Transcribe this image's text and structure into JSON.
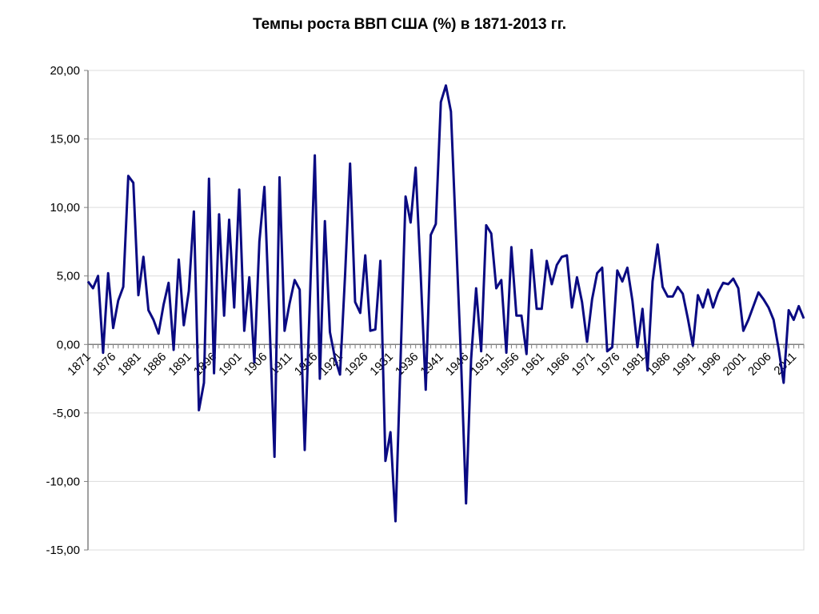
{
  "chart_data": {
    "type": "line",
    "title": "Темпы роста ВВП США (%) в 1871-2013 гг.",
    "xlabel": "",
    "ylabel": "",
    "ylim": [
      -15,
      20
    ],
    "xlim": [
      1871,
      2013
    ],
    "grid": true,
    "line_color": "#0a0a82",
    "y_ticks": [
      "20,00",
      "15,00",
      "10,00",
      "5,00",
      "0,00",
      "-5,00",
      "-10,00",
      "-15,00"
    ],
    "y_tick_values": [
      20,
      15,
      10,
      5,
      0,
      -5,
      -10,
      -15
    ],
    "x_tick_labels": [
      "1871",
      "1876",
      "1881",
      "1886",
      "1891",
      "1896",
      "1901",
      "1906",
      "1911",
      "1916",
      "1921",
      "1926",
      "1931",
      "1936",
      "1941",
      "1946",
      "1951",
      "1956",
      "1961",
      "1966",
      "1971",
      "1976",
      "1981",
      "1986",
      "1991",
      "1996",
      "2001",
      "2006",
      "2011"
    ],
    "x_start": 1871,
    "series": [
      {
        "name": "ВВП США",
        "values": [
          4.6,
          4.1,
          5.0,
          -0.6,
          5.2,
          1.2,
          3.2,
          4.2,
          12.3,
          11.8,
          3.6,
          6.4,
          2.5,
          1.8,
          0.8,
          2.9,
          4.5,
          -0.4,
          6.2,
          1.4,
          3.9,
          9.7,
          -4.8,
          -2.8,
          12.1,
          -2.1,
          9.5,
          2.1,
          9.1,
          2.7,
          11.3,
          1.0,
          4.9,
          -1.3,
          7.5,
          11.5,
          1.8,
          -8.2,
          12.2,
          1.0,
          3.0,
          4.7,
          4.0,
          -7.7,
          3.0,
          13.8,
          -2.5,
          9.0,
          0.9,
          -1.0,
          -2.2,
          5.0,
          13.2,
          3.1,
          2.3,
          6.5,
          1.0,
          1.1,
          6.1,
          -8.5,
          -6.4,
          -12.9,
          -1.2,
          10.8,
          8.9,
          12.9,
          5.1,
          -3.3,
          8.0,
          8.8,
          17.7,
          18.9,
          17.0,
          8.0,
          -1.1,
          -11.6,
          -1.1,
          4.1,
          -0.5,
          8.7,
          8.1,
          4.1,
          4.7,
          -0.6,
          7.1,
          2.1,
          2.1,
          -0.7,
          6.9,
          2.6,
          2.6,
          6.1,
          4.4,
          5.8,
          6.4,
          6.5,
          2.7,
          4.9,
          3.1,
          0.2,
          3.3,
          5.2,
          5.6,
          -0.5,
          -0.2,
          5.4,
          4.6,
          5.6,
          3.2,
          -0.2,
          2.6,
          -1.9,
          4.6,
          7.3,
          4.2,
          3.5,
          3.5,
          4.2,
          3.7,
          1.9,
          -0.1,
          3.6,
          2.7,
          4.0,
          2.7,
          3.8,
          4.5,
          4.4,
          4.8,
          4.1,
          1.0,
          1.8,
          2.8,
          3.8,
          3.3,
          2.7,
          1.8,
          -0.3,
          -2.8,
          2.5,
          1.8,
          2.8,
          1.9
        ]
      }
    ]
  }
}
